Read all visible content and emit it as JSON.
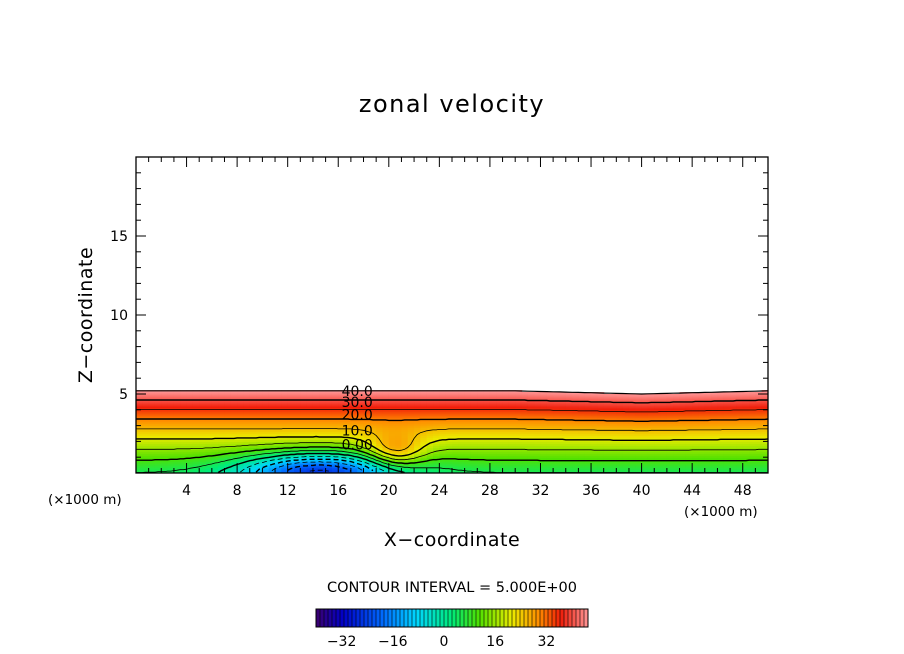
{
  "chart_data": {
    "type": "heatmap",
    "title": "zonal velocity",
    "xlabel": "X−coordinate",
    "ylabel": "Z−coordinate",
    "x_units_label": "(×1000 m)",
    "y_units_label": "(×1000 m)",
    "xlim": [
      0,
      50
    ],
    "ylim": [
      0,
      20
    ],
    "x_ticks": [
      4,
      8,
      12,
      16,
      20,
      24,
      28,
      32,
      36,
      40,
      44,
      48
    ],
    "x_tick_labels": [
      "4",
      "8",
      "12",
      "16",
      "20",
      "24",
      "28",
      "32",
      "36",
      "40",
      "44",
      "48"
    ],
    "y_ticks": [
      5,
      10,
      15
    ],
    "y_tick_labels": [
      "5",
      "10",
      "15"
    ],
    "contour_interval_text": "CONTOUR INTERVAL = 5.000E+00",
    "contour_interval": 5,
    "contour_labels": [
      {
        "text": "40.0",
        "value": 40,
        "x": 17.5,
        "z": 5.2
      },
      {
        "text": "30.0",
        "value": 30,
        "x": 17.5,
        "z": 4.5
      },
      {
        "text": "20.0",
        "value": 20,
        "x": 17.5,
        "z": 3.7
      },
      {
        "text": "10.0",
        "value": 10,
        "x": 17.5,
        "z": 2.7
      },
      {
        "text": "0.00",
        "value": 0,
        "x": 17.5,
        "z": 1.8
      }
    ],
    "field": {
      "top_z": [
        5.2,
        5.2,
        5.2,
        5.2,
        5.2,
        5.2,
        5.2,
        5.1,
        5.0,
        5.1,
        5.2
      ],
      "top_value": 45,
      "surface_value": 5,
      "min_value": -26,
      "min_location": {
        "x": 14.5,
        "z": 0.1
      },
      "obstacle_x": 20.5
    },
    "colorbar": {
      "vmin": -40,
      "vmax": 45,
      "ticks": [
        -32,
        -16,
        0,
        16,
        32
      ],
      "tick_labels": [
        "−32",
        "−16",
        "0",
        "16",
        "32"
      ]
    },
    "grid": false,
    "legend": "colorbar-bottom"
  }
}
